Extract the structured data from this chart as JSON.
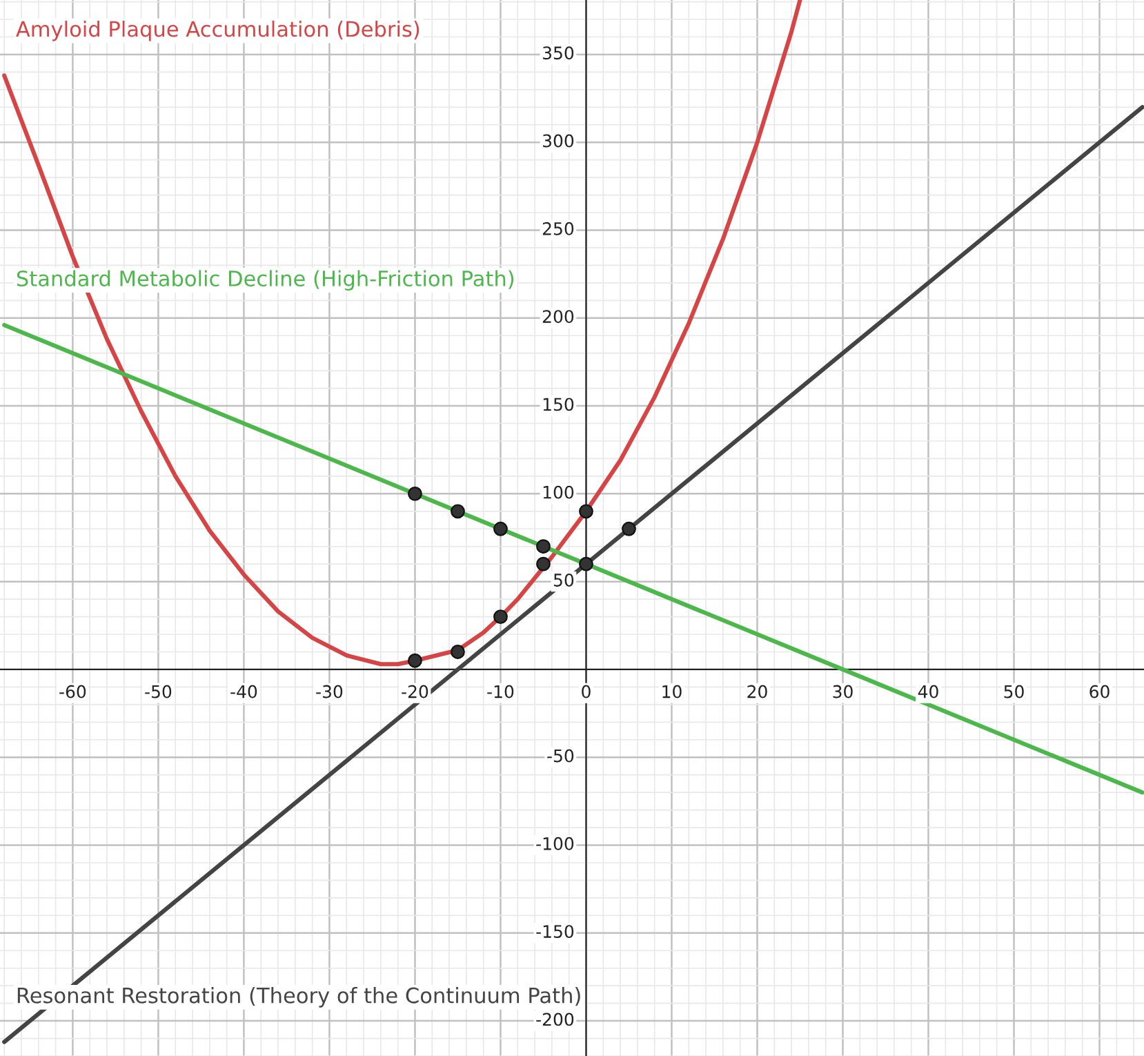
{
  "chart_data": {
    "type": "line",
    "xlim": [
      -68.5,
      65.2
    ],
    "ylim": [
      -220,
      381
    ],
    "xticks": [
      -60,
      -50,
      -40,
      -30,
      -20,
      -10,
      0,
      10,
      20,
      30,
      40,
      50,
      60
    ],
    "yticks": [
      -200,
      -150,
      -100,
      -50,
      50,
      100,
      150,
      200,
      250,
      300,
      350
    ],
    "grid": true,
    "legend": false,
    "marker": "none",
    "line_style": "solid",
    "series": [
      {
        "name": "Amyloid Plaque Accumulation (Debris)",
        "color": "#d64545",
        "x": [
          -68,
          -64,
          -60,
          -56,
          -52,
          -48,
          -44,
          -40,
          -36,
          -32,
          -28,
          -24,
          -22,
          -20,
          -15,
          -12,
          -10,
          -8,
          -5,
          -4,
          0,
          4,
          8,
          12,
          16,
          20,
          24,
          25
        ],
        "values": [
          338,
          287,
          235,
          188,
          147,
          110,
          79,
          54,
          33,
          18,
          8,
          3,
          3,
          5,
          11,
          21,
          30,
          40,
          58,
          64,
          90,
          119,
          155,
          197,
          245,
          300,
          363,
          381
        ]
      },
      {
        "name": "Standard Metabolic Decline (High-Friction Path)",
        "color": "#4cb84c",
        "x": [
          -68,
          65
        ],
        "values": [
          196,
          -70
        ]
      },
      {
        "name": "Resonant Restoration (Theory of the Continuum Path)",
        "color": "#444444",
        "x": [
          -68,
          65
        ],
        "values": [
          -212,
          320
        ]
      },
      {
        "type": "scatter",
        "marker": "circle",
        "color": "#333333",
        "x": [
          -20,
          -15,
          -10,
          -5,
          0,
          5,
          -20,
          -15,
          -10,
          -5,
          0
        ],
        "values": [
          100,
          90,
          80,
          70,
          60,
          80,
          5,
          10,
          30,
          60,
          90
        ]
      }
    ]
  }
}
